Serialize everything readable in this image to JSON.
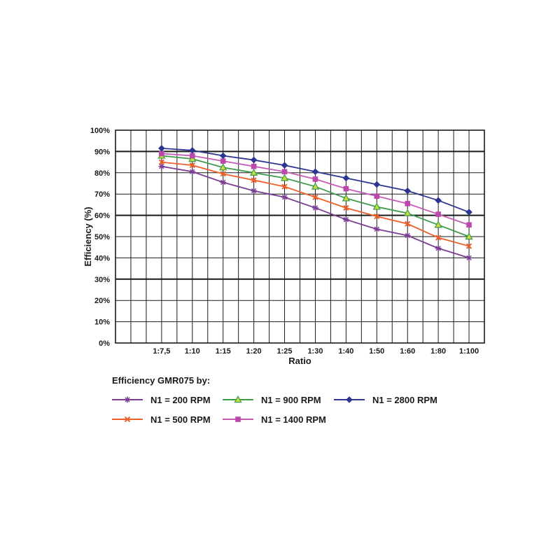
{
  "chart_data": {
    "type": "line",
    "title": "",
    "xlabel": "Ratio",
    "ylabel": "Efficiency (%)",
    "ylim": [
      0,
      100
    ],
    "grid": true,
    "legend_position": "bottom",
    "legend_title": "Efficiency GMR075 by:",
    "y_tick_labels": [
      "0%",
      "10%",
      "20%",
      "30%",
      "40%",
      "50%",
      "60%",
      "70%",
      "80%",
      "90%",
      "100%"
    ],
    "categories": [
      "1:7,5",
      "1:10",
      "1:15",
      "1:20",
      "1:25",
      "1:30",
      "1:40",
      "1:50",
      "1:60",
      "1:80",
      "1:100"
    ],
    "series": [
      {
        "name": "N1 = 200 RPM",
        "marker": "star",
        "color": "#7C3D95",
        "marker_fill": "#7C3D95",
        "values": [
          83,
          80.5,
          75.5,
          71.5,
          68.5,
          63.5,
          58,
          53.5,
          50.5,
          44.5,
          40
        ]
      },
      {
        "name": "N1 = 500 RPM",
        "marker": "x",
        "color": "#EF5F2A",
        "marker_fill": "#EF5F2A",
        "values": [
          85,
          83.5,
          79.5,
          76.5,
          73.5,
          68.5,
          63.5,
          59.5,
          56,
          49.5,
          45.5
        ]
      },
      {
        "name": "N1 = 900 RPM",
        "marker": "triangle",
        "color": "#3E9C49",
        "marker_fill": "#C8DC3F",
        "values": [
          88,
          86.5,
          82.5,
          80,
          77.5,
          73.5,
          68,
          64,
          61,
          55.5,
          50
        ]
      },
      {
        "name": "N1 = 1400 RPM",
        "marker": "square",
        "color": "#C45CB5",
        "marker_fill": "#BC48AE",
        "values": [
          89,
          88,
          85.5,
          83,
          80.5,
          77,
          72.5,
          69,
          65.5,
          60.5,
          55.5
        ]
      },
      {
        "name": "N1 = 2800 RPM",
        "marker": "diamond",
        "color": "#2C3690",
        "marker_fill": "#2C3690",
        "values": [
          91.5,
          90.5,
          88,
          86,
          83.5,
          80.5,
          77.5,
          74.5,
          71.5,
          67,
          61.5
        ]
      }
    ],
    "grid_color": "#1a1a1a",
    "emphasized_gridlines_pct": [
      90,
      60,
      30
    ]
  }
}
